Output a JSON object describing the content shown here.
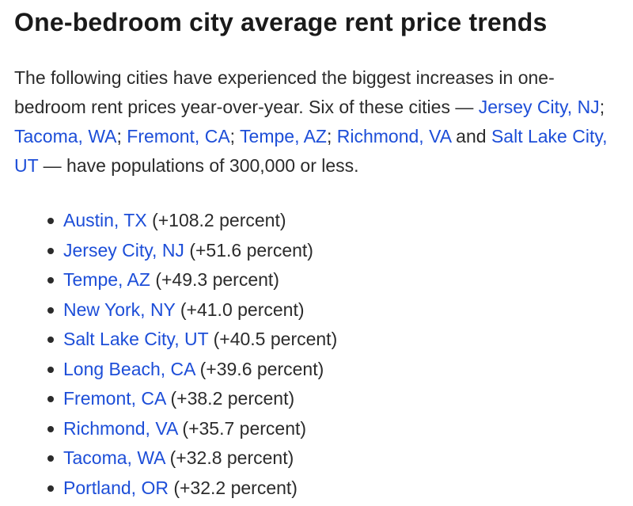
{
  "heading": "One-bedroom city average rent price trends",
  "intro": {
    "part1": "The following cities have experienced the biggest increases in one-bedroom rent prices year-over-year. Six of these cities — ",
    "links": [
      "Jersey City, NJ",
      "Tacoma, WA",
      "Fremont, CA",
      "Tempe, AZ",
      "Richmond, VA",
      "Salt Lake City, UT"
    ],
    "sep": "; ",
    "and": " and ",
    "part2": " — have populations of 300,000 or less."
  },
  "cities": [
    {
      "name": "Austin, TX",
      "change": "(+108.2 percent)"
    },
    {
      "name": "Jersey City, NJ",
      "change": "(+51.6 percent)"
    },
    {
      "name": "Tempe, AZ",
      "change": "(+49.3 percent)"
    },
    {
      "name": "New York, NY",
      "change": "(+41.0 percent)"
    },
    {
      "name": "Salt Lake City, UT",
      "change": "(+40.5 percent)"
    },
    {
      "name": "Long Beach, CA",
      "change": "(+39.6 percent)"
    },
    {
      "name": "Fremont, CA",
      "change": "(+38.2 percent)"
    },
    {
      "name": "Richmond, VA",
      "change": "(+35.7 percent)"
    },
    {
      "name": "Tacoma, WA",
      "change": "(+32.8 percent)"
    },
    {
      "name": "Portland, OR",
      "change": "(+32.2 percent)"
    }
  ],
  "colors": {
    "link": "#1d4ed8",
    "text": "#2b2b2b"
  }
}
